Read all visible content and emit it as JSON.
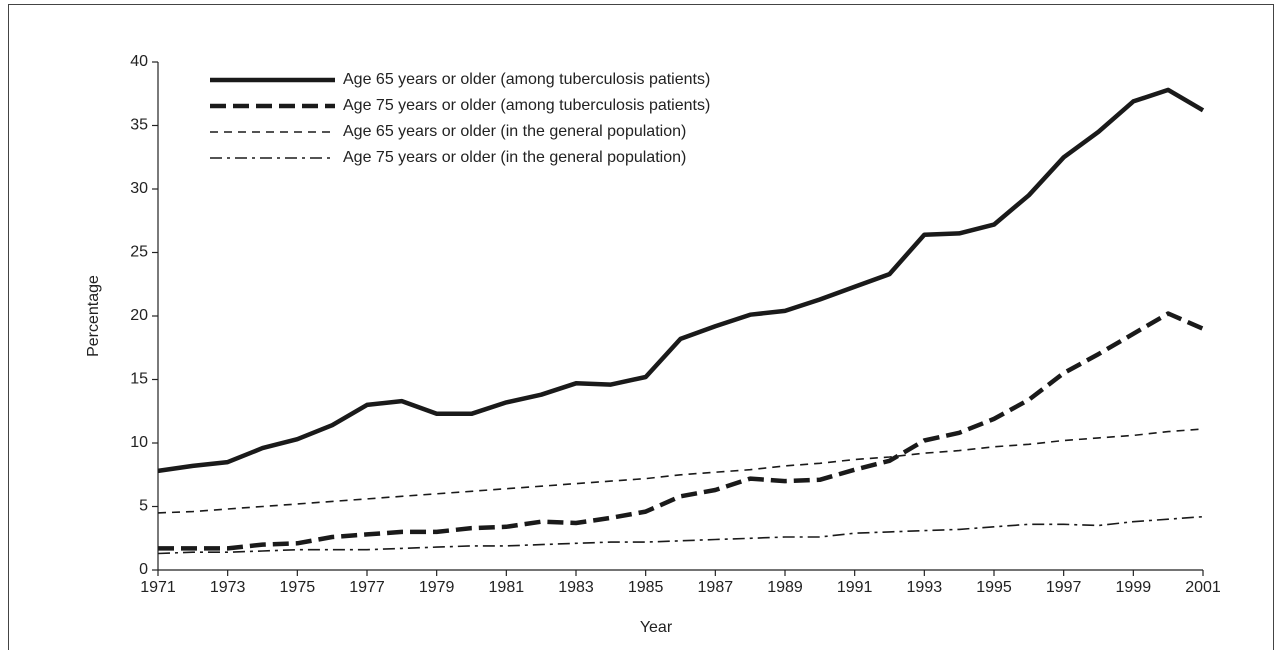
{
  "chart_data": {
    "type": "line",
    "x_label": "Year",
    "y_label": "Percentage",
    "x": [
      1971,
      1972,
      1973,
      1974,
      1975,
      1976,
      1977,
      1978,
      1979,
      1980,
      1981,
      1982,
      1983,
      1984,
      1985,
      1986,
      1987,
      1988,
      1989,
      1990,
      1991,
      1992,
      1993,
      1994,
      1995,
      1996,
      1997,
      1998,
      1999,
      2000,
      2001
    ],
    "series": [
      {
        "name": "Age 65 years or older (among tuberculosis patients)",
        "color": "#1a1a1a",
        "line_style": "solid",
        "line_weight": "heavy",
        "values": [
          7.8,
          8.2,
          8.5,
          9.6,
          10.3,
          11.4,
          13.0,
          13.3,
          12.3,
          12.3,
          13.2,
          13.8,
          14.7,
          14.6,
          15.2,
          18.2,
          19.2,
          20.1,
          20.4,
          21.3,
          22.3,
          23.3,
          26.4,
          26.5,
          27.2,
          29.5,
          32.5,
          34.5,
          36.9,
          37.8,
          36.2
        ]
      },
      {
        "name": "Age 75 years or older (among tuberculosis patients)",
        "color": "#1a1a1a",
        "line_style": "dashed",
        "line_weight": "heavy",
        "values": [
          1.7,
          1.7,
          1.7,
          2.0,
          2.1,
          2.6,
          2.8,
          3.0,
          3.0,
          3.3,
          3.4,
          3.8,
          3.7,
          4.1,
          4.6,
          5.8,
          6.3,
          7.2,
          7.0,
          7.1,
          7.9,
          8.6,
          10.2,
          10.8,
          11.9,
          13.4,
          15.5,
          17.0,
          18.6,
          20.2,
          19.0
        ]
      },
      {
        "name": "Age 65 years or older (in the general population)",
        "color": "#1a1a1a",
        "line_style": "dashed",
        "line_weight": "light",
        "values": [
          4.5,
          4.6,
          4.8,
          5.0,
          5.2,
          5.4,
          5.6,
          5.8,
          6.0,
          6.2,
          6.4,
          6.6,
          6.8,
          7.0,
          7.2,
          7.5,
          7.7,
          7.9,
          8.2,
          8.4,
          8.7,
          8.9,
          9.2,
          9.4,
          9.7,
          9.9,
          10.2,
          10.4,
          10.6,
          10.9,
          11.1
        ]
      },
      {
        "name": "Age 75 years or older (in the general population)",
        "color": "#1a1a1a",
        "line_style": "dashdot",
        "line_weight": "light",
        "values": [
          1.3,
          1.4,
          1.4,
          1.5,
          1.6,
          1.6,
          1.6,
          1.7,
          1.8,
          1.9,
          1.9,
          2.0,
          2.1,
          2.2,
          2.2,
          2.3,
          2.4,
          2.5,
          2.6,
          2.6,
          2.9,
          3.0,
          3.1,
          3.2,
          3.4,
          3.6,
          3.6,
          3.5,
          3.8,
          4.0,
          4.2
        ]
      }
    ],
    "xlim": [
      1971,
      2001
    ],
    "xticks": [
      1971,
      1973,
      1975,
      1977,
      1979,
      1981,
      1983,
      1985,
      1987,
      1989,
      1991,
      1993,
      1995,
      1997,
      1999,
      2001
    ],
    "ylim": [
      0,
      40
    ],
    "yticks": [
      0,
      5,
      10,
      15,
      20,
      25,
      30,
      35,
      40
    ],
    "grid": false,
    "legend": "upper left"
  }
}
